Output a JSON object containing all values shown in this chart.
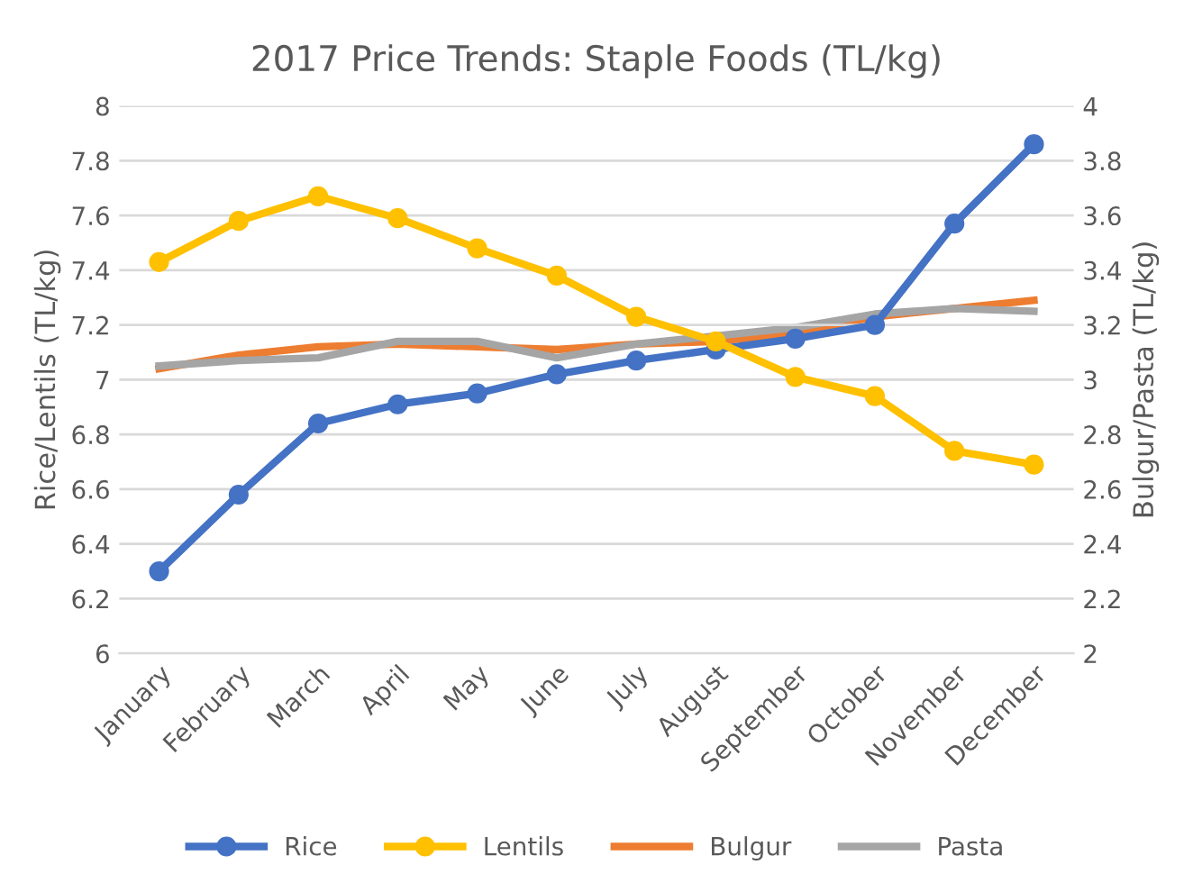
{
  "chart_data": {
    "type": "line",
    "title": "2017 Price Trends: Staple Foods (TL/kg)",
    "ylabel": "Rice/Lentils (TL/kg)",
    "y2label": "Bulgur/Pasta (TL/kg)",
    "categories": [
      "January",
      "February",
      "March",
      "April",
      "May",
      "June",
      "July",
      "August",
      "September",
      "October",
      "November",
      "December"
    ],
    "series": [
      {
        "name": "Rice",
        "color": "#4472c4",
        "marker": "circle",
        "values": [
          6.3,
          6.58,
          6.84,
          6.91,
          6.95,
          7.02,
          7.07,
          7.11,
          7.15,
          7.2,
          7.57,
          7.86
        ]
      },
      {
        "name": "Lentils",
        "color": "#ffc000",
        "marker": "circle",
        "values": [
          7.43,
          7.58,
          7.67,
          7.59,
          7.48,
          7.38,
          7.23,
          7.14,
          7.01,
          6.94,
          6.74,
          6.69
        ]
      },
      {
        "name": "Bulgur",
        "color": "#ed7d31",
        "marker": "none",
        "axis": "y2",
        "values": [
          3.04,
          3.09,
          3.12,
          3.13,
          3.12,
          3.11,
          3.13,
          3.14,
          3.17,
          3.23,
          3.26,
          3.29
        ]
      },
      {
        "name": "Pasta",
        "color": "#a5a5a5",
        "marker": "none",
        "axis": "y2",
        "values": [
          3.05,
          3.07,
          3.08,
          3.14,
          3.14,
          3.08,
          3.13,
          3.16,
          3.19,
          3.24,
          3.26,
          3.25
        ]
      }
    ],
    "ylim": [
      6,
      8
    ],
    "yticks": [
      6,
      {
        "value": 6.2,
        "label": "6.2"
      },
      {
        "value": 6.4,
        "label": "6.4"
      },
      {
        "value": 6.6,
        "label": "6.6"
      },
      {
        "value": 6.8,
        "label": "6.8"
      },
      7,
      {
        "value": 7.2,
        "label": "7.2"
      },
      {
        "value": 7.4,
        "label": "7.4"
      },
      {
        "value": 7.6,
        "label": "7.6"
      },
      {
        "value": 7.8,
        "label": "7.8"
      },
      8
    ],
    "y2lim": [
      2,
      4
    ],
    "y2ticks": [
      2,
      {
        "value": 2.2,
        "label": "2.2"
      },
      {
        "value": 2.4,
        "label": "2.4"
      },
      {
        "value": 2.6,
        "label": "2.6"
      },
      {
        "value": 2.8,
        "label": "2.8"
      },
      3,
      {
        "value": 3.2,
        "label": "3.2"
      },
      {
        "value": 3.4,
        "label": "3.4"
      },
      {
        "value": 3.6,
        "label": "3.6"
      },
      {
        "value": 3.8,
        "label": "3.8"
      },
      4
    ],
    "grid": "y",
    "legend": "bottom",
    "line_style": "solid"
  }
}
